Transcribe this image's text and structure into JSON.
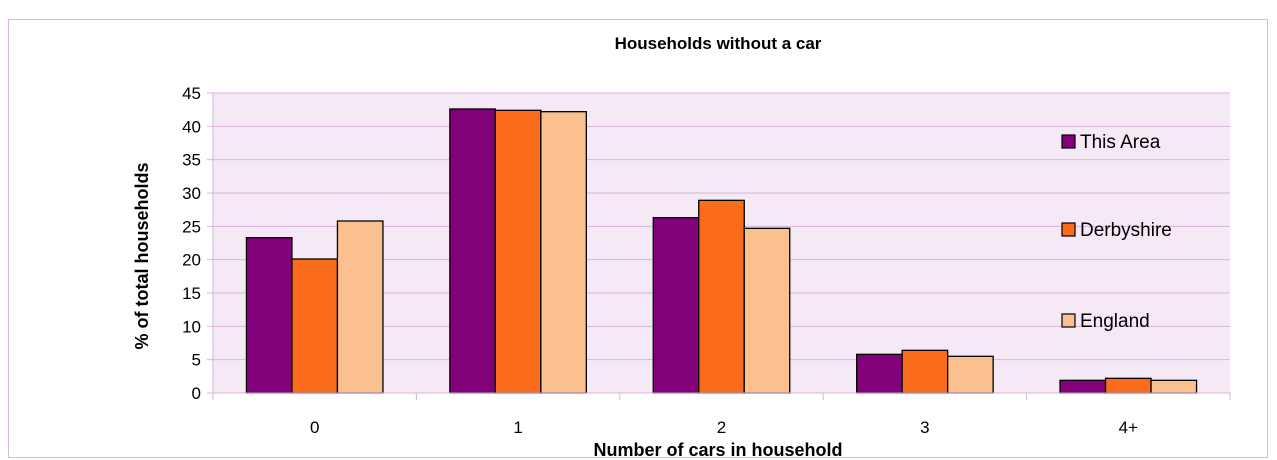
{
  "chart_data": {
    "type": "bar",
    "title": "Households without a car",
    "xlabel": "Number of cars in household",
    "ylabel": "% of total households",
    "categories": [
      "0",
      "1",
      "2",
      "3",
      "4+"
    ],
    "ylim": [
      0,
      45
    ],
    "yticks": [
      0,
      5,
      10,
      15,
      20,
      25,
      30,
      35,
      40,
      45
    ],
    "grid": true,
    "legend_position": "right",
    "series": [
      {
        "name": "This Area",
        "color": "#82007a",
        "values": [
          23.3,
          42.6,
          26.3,
          5.8,
          1.9
        ]
      },
      {
        "name": "Derbyshire",
        "color": "#fa6b1b",
        "values": [
          20.1,
          42.4,
          28.9,
          6.4,
          2.2
        ]
      },
      {
        "name": "England",
        "color": "#fac090",
        "values": [
          25.8,
          42.2,
          24.7,
          5.5,
          1.9
        ]
      }
    ],
    "plot_background": "#f5e9f5",
    "gridline_color": "#d9b3dc"
  }
}
